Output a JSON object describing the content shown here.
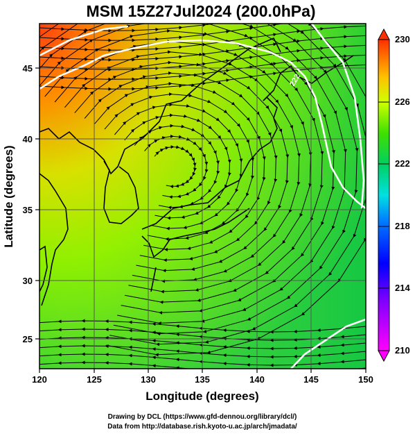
{
  "title": "MSM 15Z27Jul2024 (200.0hPa)",
  "x_axis": {
    "label": "Longitude (degrees)",
    "range": [
      120,
      150
    ],
    "ticks": [
      "120",
      "125",
      "130",
      "135",
      "140",
      "145",
      "150"
    ]
  },
  "y_axis": {
    "label": "Latitude  (degrees)",
    "range": [
      23,
      48
    ],
    "ticks": [
      "25",
      "30",
      "35",
      "40",
      "45"
    ]
  },
  "colorbar": {
    "min": 210,
    "max": 230,
    "ticks": [
      "230",
      "226",
      "222",
      "218",
      "214",
      "210"
    ]
  },
  "contour_label": "222",
  "colors": {
    "ocean_low": "#33cc33",
    "land_high": "#ff6a00",
    "coast": "#000000",
    "contour": "#ffffff"
  },
  "credits": [
    "Drawing by DCL (https://www.gfd-dennou.org/library/dcl/)",
    "Data from http://database.rish.kyoto-u.ac.jp/arch/jmadata/"
  ]
}
